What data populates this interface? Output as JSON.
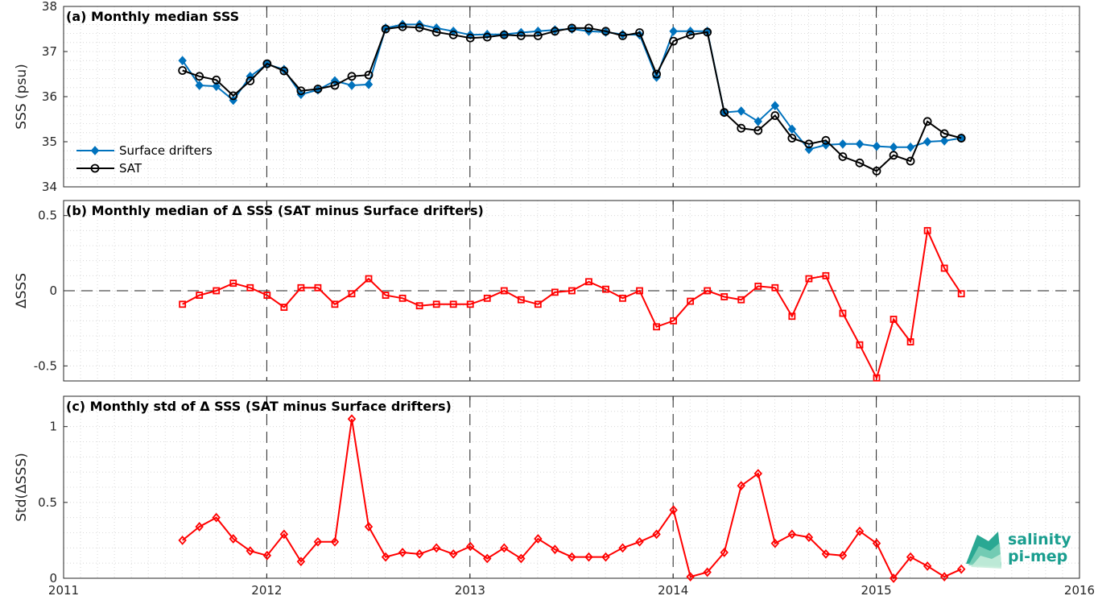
{
  "colors": {
    "drifters": "#0072bd",
    "sat": "#000000",
    "delta": "#ff0000",
    "logo": "#1a9e8f"
  },
  "logo": {
    "line1": "salinity",
    "line2": "pi-mep"
  },
  "chart_data": [
    {
      "type": "line",
      "title": "(a) Monthly median SSS",
      "ylabel": "SSS (psu)",
      "xlim": [
        2011,
        2016
      ],
      "ylim": [
        34,
        38
      ],
      "x_ticks": [
        "2011",
        "2012",
        "2013",
        "2014",
        "2015",
        "2016"
      ],
      "y_ticks": [
        "34",
        "35",
        "36",
        "37",
        "38"
      ],
      "grid": true,
      "legend_position": "lower-left",
      "series": [
        {
          "name": "Surface drifters",
          "marker": "diamond",
          "points": [
            [
              "2011-08",
              36.8
            ],
            [
              "2011-09",
              36.25
            ],
            [
              "2011-10",
              36.23
            ],
            [
              "2011-11",
              35.92
            ],
            [
              "2011-12",
              36.45
            ],
            [
              "2012-01",
              36.72
            ],
            [
              "2012-02",
              36.6
            ],
            [
              "2012-03",
              36.05
            ],
            [
              "2012-04",
              36.15
            ],
            [
              "2012-05",
              36.35
            ],
            [
              "2012-06",
              36.25
            ],
            [
              "2012-07",
              36.27
            ],
            [
              "2012-08",
              37.52
            ],
            [
              "2012-09",
              37.6
            ],
            [
              "2012-10",
              37.6
            ],
            [
              "2012-11",
              37.52
            ],
            [
              "2012-12",
              37.45
            ],
            [
              "2013-01",
              37.37
            ],
            [
              "2013-02",
              37.38
            ],
            [
              "2013-03",
              37.38
            ],
            [
              "2013-04",
              37.42
            ],
            [
              "2013-05",
              37.45
            ],
            [
              "2013-06",
              37.48
            ],
            [
              "2013-07",
              37.5
            ],
            [
              "2013-08",
              37.45
            ],
            [
              "2013-09",
              37.43
            ],
            [
              "2013-10",
              37.38
            ],
            [
              "2013-11",
              37.37
            ],
            [
              "2013-12",
              36.43
            ],
            [
              "2014-01",
              37.45
            ],
            [
              "2014-02",
              37.45
            ],
            [
              "2014-03",
              37.45
            ],
            [
              "2014-04",
              35.65
            ],
            [
              "2014-05",
              35.68
            ],
            [
              "2014-06",
              35.45
            ],
            [
              "2014-07",
              35.8
            ],
            [
              "2014-08",
              35.28
            ],
            [
              "2014-09",
              34.83
            ],
            [
              "2014-10",
              34.93
            ],
            [
              "2014-11",
              34.95
            ],
            [
              "2014-12",
              34.95
            ],
            [
              "2015-01",
              34.9
            ],
            [
              "2015-02",
              34.88
            ],
            [
              "2015-03",
              34.88
            ],
            [
              "2015-04",
              35.0
            ],
            [
              "2015-05",
              35.02
            ],
            [
              "2015-06",
              35.08
            ]
          ]
        },
        {
          "name": "SAT",
          "marker": "circle",
          "points": [
            [
              "2011-08",
              36.58
            ],
            [
              "2011-09",
              36.45
            ],
            [
              "2011-10",
              36.37
            ],
            [
              "2011-11",
              36.02
            ],
            [
              "2011-12",
              36.35
            ],
            [
              "2012-01",
              36.73
            ],
            [
              "2012-02",
              36.57
            ],
            [
              "2012-03",
              36.13
            ],
            [
              "2012-04",
              36.17
            ],
            [
              "2012-05",
              36.25
            ],
            [
              "2012-06",
              36.45
            ],
            [
              "2012-07",
              36.48
            ],
            [
              "2012-08",
              37.5
            ],
            [
              "2012-09",
              37.55
            ],
            [
              "2012-10",
              37.53
            ],
            [
              "2012-11",
              37.43
            ],
            [
              "2012-12",
              37.37
            ],
            [
              "2013-01",
              37.3
            ],
            [
              "2013-02",
              37.32
            ],
            [
              "2013-03",
              37.37
            ],
            [
              "2013-04",
              37.35
            ],
            [
              "2013-05",
              37.35
            ],
            [
              "2013-06",
              37.45
            ],
            [
              "2013-07",
              37.52
            ],
            [
              "2013-08",
              37.52
            ],
            [
              "2013-09",
              37.45
            ],
            [
              "2013-10",
              37.35
            ],
            [
              "2013-11",
              37.42
            ],
            [
              "2013-12",
              36.5
            ],
            [
              "2014-01",
              37.23
            ],
            [
              "2014-02",
              37.37
            ],
            [
              "2014-03",
              37.43
            ],
            [
              "2014-04",
              35.65
            ],
            [
              "2014-05",
              35.3
            ],
            [
              "2014-06",
              35.25
            ],
            [
              "2014-07",
              35.58
            ],
            [
              "2014-08",
              35.08
            ],
            [
              "2014-09",
              34.95
            ],
            [
              "2014-10",
              35.03
            ],
            [
              "2014-11",
              34.67
            ],
            [
              "2014-12",
              34.53
            ],
            [
              "2015-01",
              34.35
            ],
            [
              "2015-02",
              34.7
            ],
            [
              "2015-03",
              34.57
            ],
            [
              "2015-04",
              35.45
            ],
            [
              "2015-05",
              35.18
            ],
            [
              "2015-06",
              35.08
            ]
          ]
        }
      ]
    },
    {
      "type": "line",
      "title": "(b) Monthly median of Δ SSS (SAT minus Surface drifters)",
      "ylabel": "ΔSSS",
      "xlim": [
        2011,
        2016
      ],
      "ylim": [
        -0.6,
        0.6
      ],
      "x_ticks": [
        "2011",
        "2012",
        "2013",
        "2014",
        "2015",
        "2016"
      ],
      "y_ticks": [
        "-0.5",
        "0",
        "0.5"
      ],
      "grid": true,
      "zero_line": true,
      "series": [
        {
          "marker": "square",
          "points": [
            [
              "2011-08",
              -0.09
            ],
            [
              "2011-09",
              -0.03
            ],
            [
              "2011-10",
              0.0
            ],
            [
              "2011-11",
              0.05
            ],
            [
              "2011-12",
              0.02
            ],
            [
              "2012-01",
              -0.03
            ],
            [
              "2012-02",
              -0.11
            ],
            [
              "2012-03",
              0.02
            ],
            [
              "2012-04",
              0.02
            ],
            [
              "2012-05",
              -0.09
            ],
            [
              "2012-06",
              -0.02
            ],
            [
              "2012-07",
              0.08
            ],
            [
              "2012-08",
              -0.03
            ],
            [
              "2012-09",
              -0.05
            ],
            [
              "2012-10",
              -0.1
            ],
            [
              "2012-11",
              -0.09
            ],
            [
              "2012-12",
              -0.09
            ],
            [
              "2013-01",
              -0.09
            ],
            [
              "2013-02",
              -0.05
            ],
            [
              "2013-03",
              0.0
            ],
            [
              "2013-04",
              -0.06
            ],
            [
              "2013-05",
              -0.09
            ],
            [
              "2013-06",
              -0.01
            ],
            [
              "2013-07",
              0.0
            ],
            [
              "2013-08",
              0.06
            ],
            [
              "2013-09",
              0.01
            ],
            [
              "2013-10",
              -0.05
            ],
            [
              "2013-11",
              0.0
            ],
            [
              "2013-12",
              -0.24
            ],
            [
              "2014-01",
              -0.2
            ],
            [
              "2014-02",
              -0.07
            ],
            [
              "2014-03",
              0.0
            ],
            [
              "2014-04",
              -0.04
            ],
            [
              "2014-05",
              -0.06
            ],
            [
              "2014-06",
              0.03
            ],
            [
              "2014-07",
              0.02
            ],
            [
              "2014-08",
              -0.17
            ],
            [
              "2014-09",
              0.08
            ],
            [
              "2014-10",
              0.1
            ],
            [
              "2014-11",
              -0.15
            ],
            [
              "2014-12",
              -0.36
            ],
            [
              "2015-01",
              -0.58
            ],
            [
              "2015-02",
              -0.19
            ],
            [
              "2015-03",
              -0.34
            ],
            [
              "2015-04",
              0.4
            ],
            [
              "2015-05",
              0.15
            ],
            [
              "2015-06",
              -0.02
            ]
          ]
        }
      ]
    },
    {
      "type": "line",
      "title": "(c) Monthly std of Δ SSS (SAT minus Surface drifters)",
      "ylabel": "Std(ΔSSS)",
      "xlim": [
        2011,
        2016
      ],
      "ylim": [
        0,
        1.2
      ],
      "x_ticks": [
        "2011",
        "2012",
        "2013",
        "2014",
        "2015",
        "2016"
      ],
      "y_ticks": [
        "0",
        "0.5",
        "1"
      ],
      "grid": true,
      "series": [
        {
          "marker": "diamond",
          "points": [
            [
              "2011-08",
              0.25
            ],
            [
              "2011-09",
              0.34
            ],
            [
              "2011-10",
              0.4
            ],
            [
              "2011-11",
              0.26
            ],
            [
              "2011-12",
              0.18
            ],
            [
              "2012-01",
              0.15
            ],
            [
              "2012-02",
              0.29
            ],
            [
              "2012-03",
              0.11
            ],
            [
              "2012-04",
              0.24
            ],
            [
              "2012-05",
              0.24
            ],
            [
              "2012-06",
              1.05
            ],
            [
              "2012-07",
              0.34
            ],
            [
              "2012-08",
              0.14
            ],
            [
              "2012-09",
              0.17
            ],
            [
              "2012-10",
              0.16
            ],
            [
              "2012-11",
              0.2
            ],
            [
              "2012-12",
              0.16
            ],
            [
              "2013-01",
              0.21
            ],
            [
              "2013-02",
              0.13
            ],
            [
              "2013-03",
              0.2
            ],
            [
              "2013-04",
              0.13
            ],
            [
              "2013-05",
              0.26
            ],
            [
              "2013-06",
              0.19
            ],
            [
              "2013-07",
              0.14
            ],
            [
              "2013-08",
              0.14
            ],
            [
              "2013-09",
              0.14
            ],
            [
              "2013-10",
              0.2
            ],
            [
              "2013-11",
              0.24
            ],
            [
              "2013-12",
              0.29
            ],
            [
              "2014-01",
              0.45
            ],
            [
              "2014-02",
              0.01
            ],
            [
              "2014-03",
              0.04
            ],
            [
              "2014-04",
              0.17
            ],
            [
              "2014-05",
              0.61
            ],
            [
              "2014-06",
              0.69
            ],
            [
              "2014-07",
              0.23
            ],
            [
              "2014-08",
              0.29
            ],
            [
              "2014-09",
              0.27
            ],
            [
              "2014-10",
              0.16
            ],
            [
              "2014-11",
              0.15
            ],
            [
              "2014-12",
              0.31
            ],
            [
              "2015-01",
              0.23
            ],
            [
              "2015-02",
              0.0
            ],
            [
              "2015-03",
              0.14
            ],
            [
              "2015-04",
              0.08
            ],
            [
              "2015-05",
              0.01
            ],
            [
              "2015-06",
              0.06
            ]
          ]
        }
      ]
    }
  ]
}
